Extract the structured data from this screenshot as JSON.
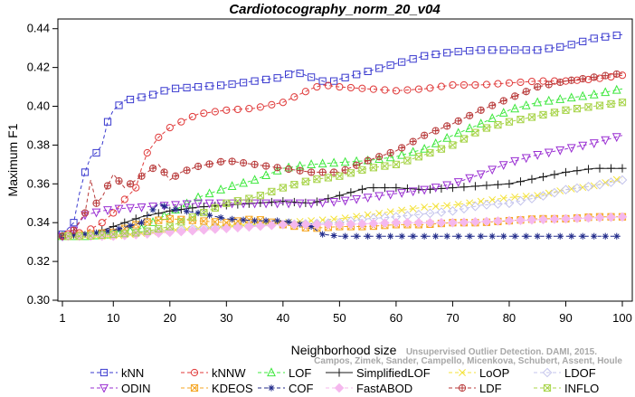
{
  "chart_data": {
    "type": "line",
    "title": "Cardiotocography_norm_20_v04",
    "xlabel": "Neighborhood size",
    "ylabel": "Maximum F1",
    "xlim": [
      1,
      100
    ],
    "ylim": [
      0.3,
      0.445
    ],
    "xticks": [
      1,
      10,
      20,
      30,
      40,
      50,
      60,
      70,
      80,
      90,
      100
    ],
    "yticks": [
      0.3,
      0.32,
      0.34,
      0.36,
      0.38,
      0.4,
      0.42,
      0.44
    ],
    "ytick_labels": [
      "0.30",
      "0.32",
      "0.34",
      "0.36",
      "0.38",
      "0.40",
      "0.42",
      "0.44"
    ],
    "grid": false,
    "legend_position": "bottom",
    "series": [
      {
        "name": "kNN",
        "color": "#3a3acf",
        "marker": "square",
        "dash": "4,3",
        "points": [
          [
            1,
            0.334
          ],
          [
            3,
            0.34
          ],
          [
            4,
            0.355
          ],
          [
            5,
            0.366
          ],
          [
            6,
            0.374
          ],
          [
            7,
            0.376
          ],
          [
            8,
            0.38
          ],
          [
            9,
            0.392
          ],
          [
            10,
            0.398
          ],
          [
            12,
            0.403
          ],
          [
            14,
            0.404
          ],
          [
            17,
            0.406
          ],
          [
            20,
            0.409
          ],
          [
            25,
            0.41
          ],
          [
            30,
            0.411
          ],
          [
            35,
            0.413
          ],
          [
            40,
            0.415
          ],
          [
            42,
            0.418
          ],
          [
            45,
            0.415
          ],
          [
            48,
            0.412
          ],
          [
            50,
            0.414
          ],
          [
            55,
            0.418
          ],
          [
            60,
            0.422
          ],
          [
            65,
            0.426
          ],
          [
            70,
            0.428
          ],
          [
            75,
            0.429
          ],
          [
            80,
            0.429
          ],
          [
            85,
            0.429
          ],
          [
            90,
            0.431
          ],
          [
            95,
            0.435
          ],
          [
            100,
            0.437
          ]
        ]
      },
      {
        "name": "kNNW",
        "color": "#e03a3a",
        "marker": "circle",
        "dash": "4,3",
        "points": [
          [
            1,
            0.334
          ],
          [
            5,
            0.335
          ],
          [
            8,
            0.34
          ],
          [
            10,
            0.345
          ],
          [
            12,
            0.352
          ],
          [
            14,
            0.358
          ],
          [
            15,
            0.368
          ],
          [
            16,
            0.376
          ],
          [
            18,
            0.384
          ],
          [
            20,
            0.389
          ],
          [
            22,
            0.392
          ],
          [
            25,
            0.396
          ],
          [
            30,
            0.398
          ],
          [
            35,
            0.399
          ],
          [
            40,
            0.402
          ],
          [
            45,
            0.409
          ],
          [
            47,
            0.411
          ],
          [
            50,
            0.41
          ],
          [
            55,
            0.409
          ],
          [
            60,
            0.408
          ],
          [
            65,
            0.409
          ],
          [
            70,
            0.411
          ],
          [
            75,
            0.411
          ],
          [
            80,
            0.412
          ],
          [
            85,
            0.413
          ],
          [
            90,
            0.413
          ],
          [
            95,
            0.414
          ],
          [
            100,
            0.416
          ]
        ]
      },
      {
        "name": "LOF",
        "color": "#3ee83e",
        "marker": "triangle-up",
        "dash": "4,3",
        "points": [
          [
            1,
            0.333
          ],
          [
            5,
            0.333
          ],
          [
            10,
            0.334
          ],
          [
            15,
            0.337
          ],
          [
            20,
            0.345
          ],
          [
            25,
            0.353
          ],
          [
            30,
            0.358
          ],
          [
            35,
            0.362
          ],
          [
            40,
            0.368
          ],
          [
            45,
            0.37
          ],
          [
            50,
            0.371
          ],
          [
            55,
            0.372
          ],
          [
            60,
            0.374
          ],
          [
            65,
            0.378
          ],
          [
            70,
            0.385
          ],
          [
            75,
            0.391
          ],
          [
            80,
            0.398
          ],
          [
            85,
            0.402
          ],
          [
            90,
            0.404
          ],
          [
            95,
            0.406
          ],
          [
            100,
            0.409
          ]
        ]
      },
      {
        "name": "SimplifiedLOF",
        "color": "#1a1a1a",
        "marker": "plus",
        "dash": "",
        "points": [
          [
            1,
            0.333
          ],
          [
            5,
            0.333
          ],
          [
            10,
            0.338
          ],
          [
            15,
            0.343
          ],
          [
            20,
            0.346
          ],
          [
            25,
            0.348
          ],
          [
            30,
            0.349
          ],
          [
            35,
            0.35
          ],
          [
            40,
            0.351
          ],
          [
            45,
            0.35
          ],
          [
            50,
            0.354
          ],
          [
            55,
            0.358
          ],
          [
            60,
            0.358
          ],
          [
            65,
            0.357
          ],
          [
            70,
            0.358
          ],
          [
            75,
            0.359
          ],
          [
            80,
            0.36
          ],
          [
            85,
            0.363
          ],
          [
            90,
            0.366
          ],
          [
            95,
            0.368
          ],
          [
            100,
            0.368
          ]
        ]
      },
      {
        "name": "LoOP",
        "color": "#f4e23a",
        "marker": "cross",
        "dash": "4,3",
        "points": [
          [
            1,
            0.333
          ],
          [
            10,
            0.333
          ],
          [
            20,
            0.336
          ],
          [
            30,
            0.338
          ],
          [
            40,
            0.34
          ],
          [
            50,
            0.342
          ],
          [
            55,
            0.344
          ],
          [
            60,
            0.346
          ],
          [
            65,
            0.348
          ],
          [
            70,
            0.349
          ],
          [
            75,
            0.351
          ],
          [
            80,
            0.353
          ],
          [
            85,
            0.354
          ],
          [
            90,
            0.357
          ],
          [
            95,
            0.359
          ],
          [
            100,
            0.363
          ]
        ]
      },
      {
        "name": "LDOF",
        "color": "#c4c4ec",
        "marker": "diamond",
        "dash": "4,3",
        "points": [
          [
            1,
            0.333
          ],
          [
            10,
            0.334
          ],
          [
            20,
            0.336
          ],
          [
            30,
            0.338
          ],
          [
            40,
            0.339
          ],
          [
            50,
            0.34
          ],
          [
            55,
            0.342
          ],
          [
            60,
            0.343
          ],
          [
            70,
            0.346
          ],
          [
            75,
            0.349
          ],
          [
            80,
            0.35
          ],
          [
            85,
            0.353
          ],
          [
            90,
            0.357
          ],
          [
            95,
            0.359
          ],
          [
            100,
            0.362
          ]
        ]
      },
      {
        "name": "ODIN",
        "color": "#9a2fd2",
        "marker": "triangle-down",
        "dash": "4,3",
        "points": [
          [
            1,
            0.333
          ],
          [
            3,
            0.336
          ],
          [
            5,
            0.344
          ],
          [
            8,
            0.346
          ],
          [
            10,
            0.347
          ],
          [
            15,
            0.348
          ],
          [
            20,
            0.349
          ],
          [
            25,
            0.35
          ],
          [
            30,
            0.35
          ],
          [
            35,
            0.35
          ],
          [
            40,
            0.35
          ],
          [
            45,
            0.35
          ],
          [
            50,
            0.351
          ],
          [
            55,
            0.353
          ],
          [
            60,
            0.355
          ],
          [
            65,
            0.357
          ],
          [
            70,
            0.36
          ],
          [
            75,
            0.365
          ],
          [
            80,
            0.371
          ],
          [
            85,
            0.375
          ],
          [
            90,
            0.378
          ],
          [
            95,
            0.381
          ],
          [
            100,
            0.385
          ]
        ]
      },
      {
        "name": "KDEOS",
        "color": "#f5a623",
        "marker": "x-box",
        "dash": "4,3",
        "points": [
          [
            1,
            0.333
          ],
          [
            5,
            0.334
          ],
          [
            10,
            0.335
          ],
          [
            15,
            0.34
          ],
          [
            20,
            0.342
          ],
          [
            25,
            0.341
          ],
          [
            30,
            0.34
          ],
          [
            35,
            0.342
          ],
          [
            40,
            0.339
          ],
          [
            45,
            0.337
          ],
          [
            50,
            0.338
          ],
          [
            55,
            0.338
          ],
          [
            60,
            0.339
          ],
          [
            65,
            0.339
          ],
          [
            70,
            0.34
          ],
          [
            75,
            0.34
          ],
          [
            80,
            0.341
          ],
          [
            85,
            0.342
          ],
          [
            90,
            0.342
          ],
          [
            95,
            0.343
          ],
          [
            100,
            0.343
          ]
        ]
      },
      {
        "name": "COF",
        "color": "#202a8a",
        "marker": "asterisk",
        "dash": "4,3",
        "points": [
          [
            1,
            0.333
          ],
          [
            5,
            0.334
          ],
          [
            10,
            0.336
          ],
          [
            15,
            0.34
          ],
          [
            18,
            0.35
          ],
          [
            20,
            0.347
          ],
          [
            25,
            0.345
          ],
          [
            30,
            0.342
          ],
          [
            35,
            0.341
          ],
          [
            40,
            0.341
          ],
          [
            45,
            0.338
          ],
          [
            47,
            0.334
          ],
          [
            50,
            0.333
          ],
          [
            60,
            0.333
          ],
          [
            70,
            0.333
          ],
          [
            80,
            0.333
          ],
          [
            90,
            0.333
          ],
          [
            100,
            0.333
          ]
        ]
      },
      {
        "name": "FastABOD",
        "color": "#f5b8ee",
        "marker": "diamond-filled",
        "dash": "4,3",
        "points": [
          [
            1,
            0.333
          ],
          [
            10,
            0.333
          ],
          [
            20,
            0.335
          ],
          [
            30,
            0.337
          ],
          [
            40,
            0.339
          ],
          [
            50,
            0.339
          ],
          [
            60,
            0.34
          ],
          [
            70,
            0.34
          ],
          [
            80,
            0.341
          ],
          [
            90,
            0.342
          ],
          [
            100,
            0.343
          ]
        ]
      },
      {
        "name": "LDF",
        "color": "#b83a3a",
        "marker": "circle-plus",
        "dash": "4,3",
        "points": [
          [
            1,
            0.333
          ],
          [
            3,
            0.336
          ],
          [
            5,
            0.345
          ],
          [
            6,
            0.362
          ],
          [
            7,
            0.35
          ],
          [
            8,
            0.353
          ],
          [
            10,
            0.365
          ],
          [
            12,
            0.358
          ],
          [
            14,
            0.362
          ],
          [
            16,
            0.366
          ],
          [
            18,
            0.37
          ],
          [
            20,
            0.362
          ],
          [
            22,
            0.366
          ],
          [
            25,
            0.369
          ],
          [
            30,
            0.372
          ],
          [
            35,
            0.37
          ],
          [
            40,
            0.368
          ],
          [
            45,
            0.366
          ],
          [
            50,
            0.366
          ],
          [
            55,
            0.372
          ],
          [
            60,
            0.377
          ],
          [
            65,
            0.385
          ],
          [
            70,
            0.391
          ],
          [
            75,
            0.398
          ],
          [
            80,
            0.404
          ],
          [
            85,
            0.41
          ],
          [
            90,
            0.413
          ],
          [
            95,
            0.415
          ],
          [
            100,
            0.417
          ]
        ]
      },
      {
        "name": "INFLO",
        "color": "#a8d44a",
        "marker": "x-box",
        "dash": "4,3",
        "points": [
          [
            1,
            0.333
          ],
          [
            5,
            0.333
          ],
          [
            10,
            0.334
          ],
          [
            15,
            0.335
          ],
          [
            20,
            0.338
          ],
          [
            25,
            0.344
          ],
          [
            30,
            0.35
          ],
          [
            35,
            0.353
          ],
          [
            40,
            0.358
          ],
          [
            45,
            0.362
          ],
          [
            50,
            0.364
          ],
          [
            55,
            0.368
          ],
          [
            60,
            0.37
          ],
          [
            65,
            0.375
          ],
          [
            70,
            0.38
          ],
          [
            75,
            0.388
          ],
          [
            80,
            0.392
          ],
          [
            85,
            0.395
          ],
          [
            90,
            0.398
          ],
          [
            95,
            0.4
          ],
          [
            100,
            0.402
          ]
        ]
      }
    ]
  },
  "watermark": {
    "line1": "Unsupervised Outlier Detection. DAMI, 2015.",
    "line2": "Campos, Zimek, Sander, Campello, Micenkova, Schubert, Assent, Houle"
  }
}
